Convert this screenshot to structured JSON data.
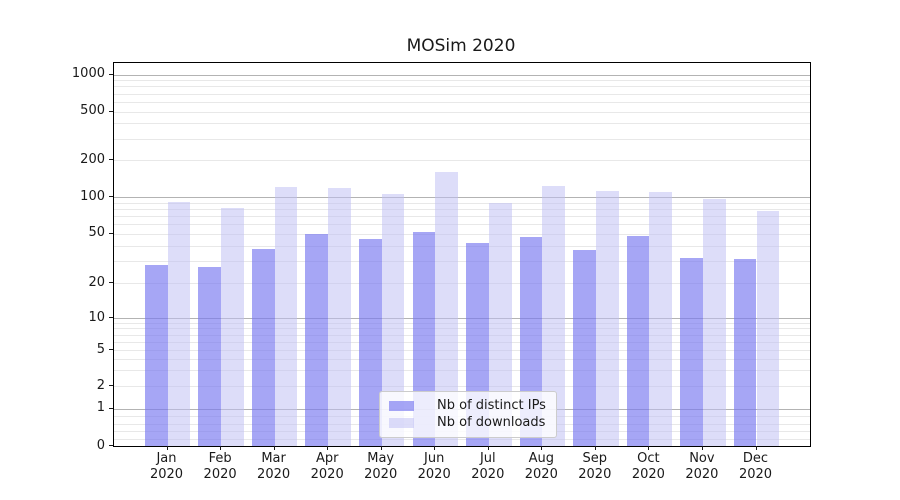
{
  "title": "MOSim 2020",
  "chart_data": {
    "type": "bar",
    "title": "MOSim 2020",
    "categories": [
      "Jan 2020",
      "Feb 2020",
      "Mar 2020",
      "Apr 2020",
      "May 2020",
      "Jun 2020",
      "Jul 2020",
      "Aug 2020",
      "Sep 2020",
      "Oct 2020",
      "Nov 2020",
      "Dec 2020"
    ],
    "series": [
      {
        "name": "Nb of distinct IPs",
        "key": "distinct-ips",
        "fill": "rgba(120,120,240,0.66)",
        "values": [
          28,
          27,
          38,
          50,
          45,
          52,
          42,
          47,
          37,
          48,
          32,
          31
        ]
      },
      {
        "name": "Nb of downloads",
        "key": "downloads",
        "fill": "rgba(190,190,243,0.52)",
        "values": [
          91,
          82,
          120,
          118,
          105,
          160,
          89,
          123,
          113,
          109,
          96,
          77
        ]
      }
    ],
    "yscale": "symlog",
    "ylim": [
      0,
      1000
    ],
    "yticks": [
      0,
      1,
      2,
      5,
      10,
      20,
      50,
      100,
      200,
      500,
      1000
    ],
    "grid": true,
    "legend_position": "lower-center"
  },
  "colors": {
    "grid_major": "#b3b3b3",
    "grid_minor": "#e8e8e8",
    "spine": "#000000",
    "text": "#1a1a1a",
    "background": "#ffffff"
  }
}
